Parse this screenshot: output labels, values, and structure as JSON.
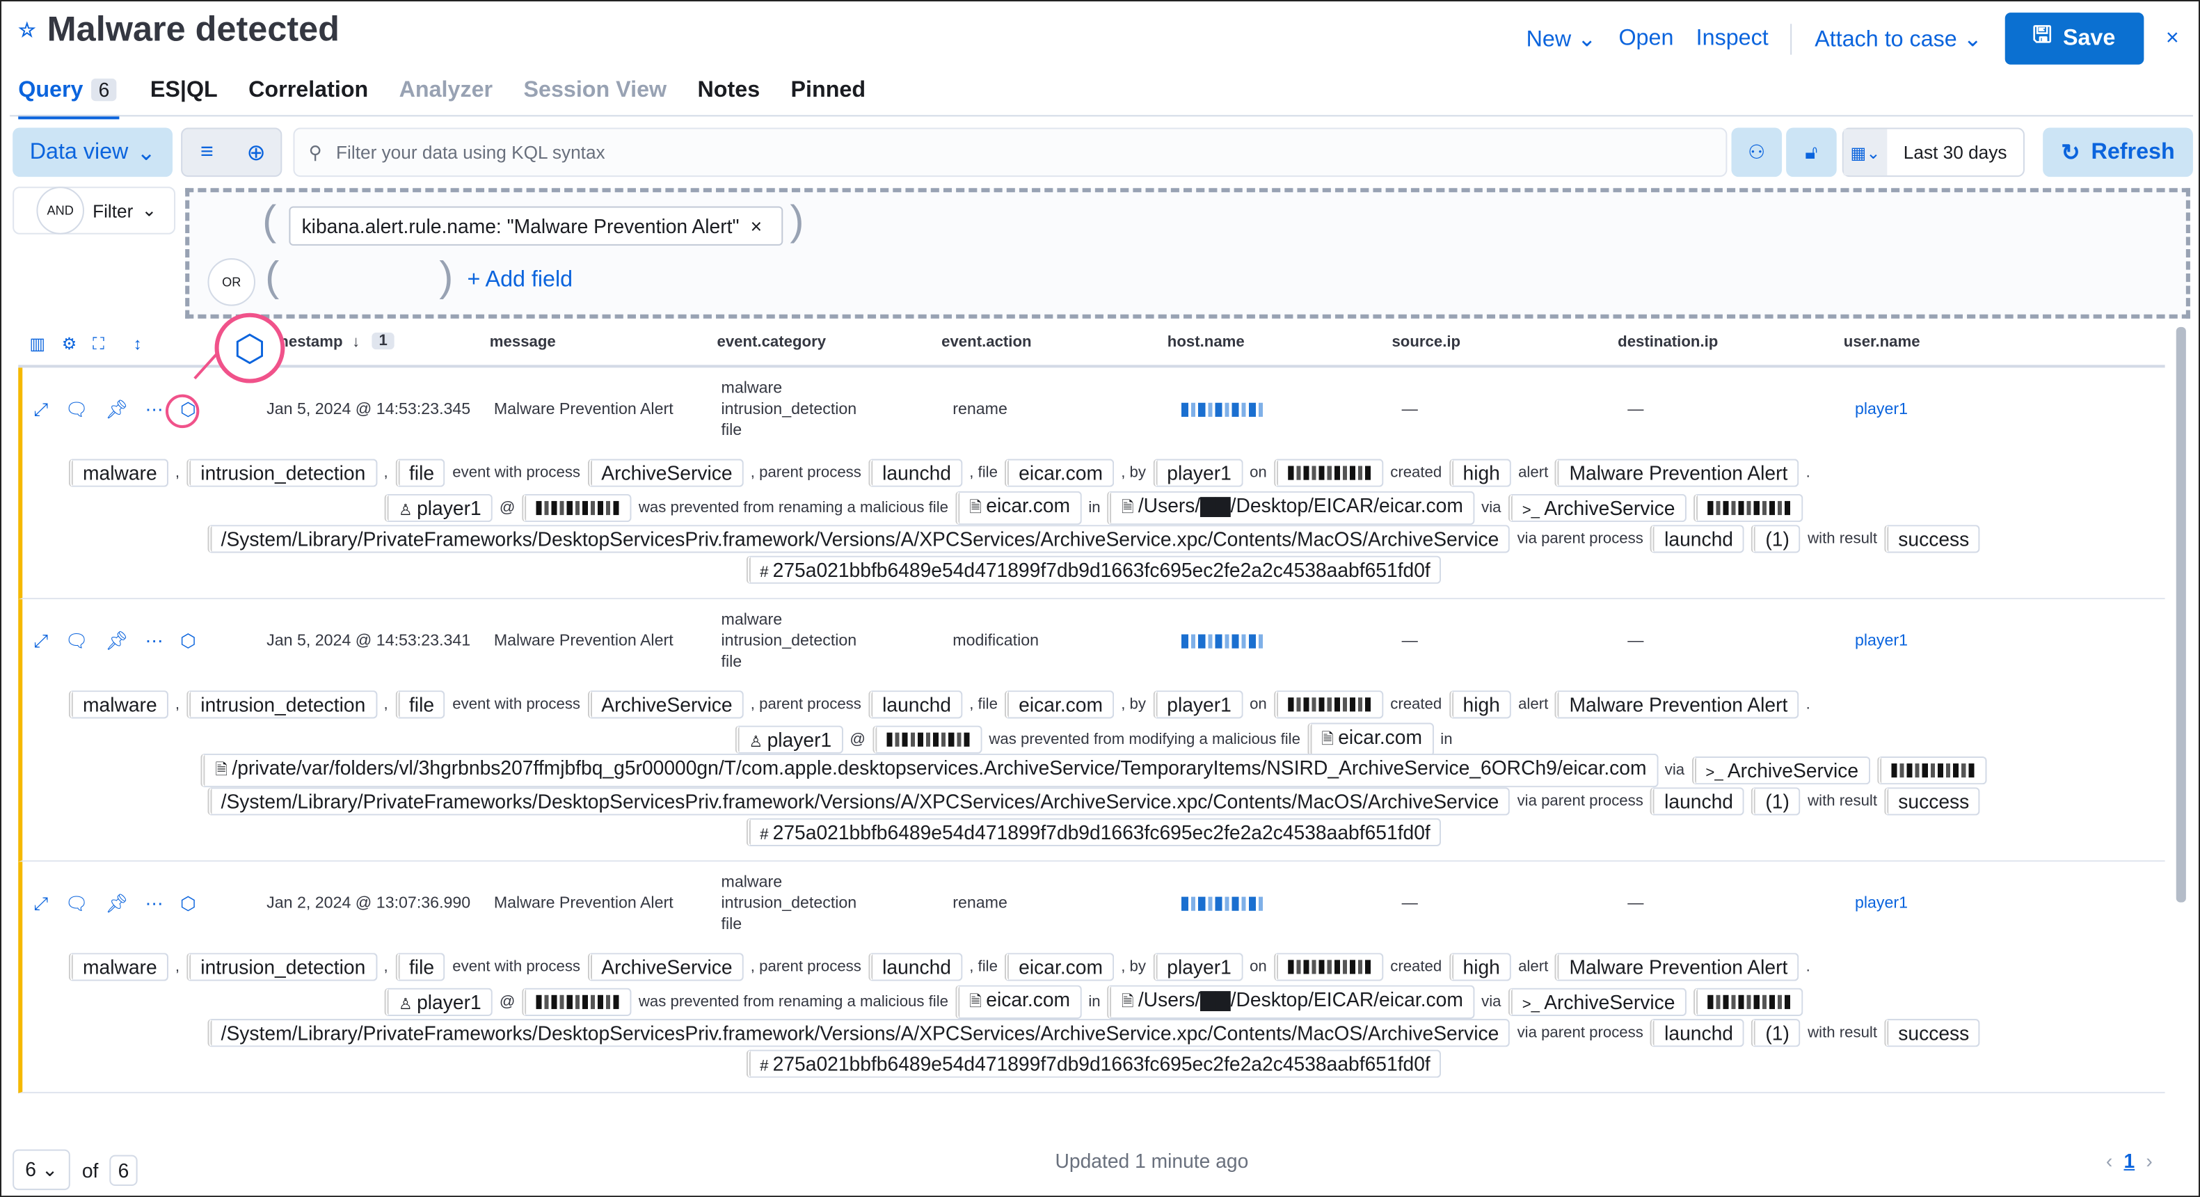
{
  "header": {
    "title": "Malware detected",
    "star_icon": "star-icon",
    "new": "New",
    "open": "Open",
    "inspect": "Inspect",
    "attach": "Attach to case",
    "save": "Save",
    "close": "×"
  },
  "tabs": [
    {
      "label": "Query",
      "count": "6",
      "state": "active"
    },
    {
      "label": "ES|QL",
      "state": "normal"
    },
    {
      "label": "Correlation",
      "state": "normal"
    },
    {
      "label": "Analyzer",
      "state": "disabled"
    },
    {
      "label": "Session View",
      "state": "disabled"
    },
    {
      "label": "Notes",
      "state": "normal"
    },
    {
      "label": "Pinned",
      "state": "normal"
    }
  ],
  "query": {
    "data_view": "Data view",
    "placeholder": "Filter your data using KQL syntax",
    "date_range": "Last 30 days",
    "refresh": "Refresh"
  },
  "filters": {
    "and": "AND",
    "filter": "Filter",
    "or": "OR",
    "pill": "kibana.alert.rule.name: \"Malware Prevention Alert\"",
    "add_field": "+ Add field"
  },
  "columns": [
    "nestamp",
    "message",
    "event.category",
    "event.action",
    "host.name",
    "source.ip",
    "destination.ip",
    "user.name"
  ],
  "sort_count": "1",
  "rows": [
    {
      "timestamp": "Jan 5, 2024 @ 14:53:23.345",
      "message": "Malware Prevention Alert",
      "categories": [
        "malware",
        "intrusion_detection",
        "file"
      ],
      "action": "rename",
      "source": "—",
      "dest": "—",
      "user": "player1",
      "lines": [
        [
          [
            "b",
            "malware"
          ],
          [
            "t",
            ","
          ],
          [
            "b",
            "intrusion_detection"
          ],
          [
            "t",
            ","
          ],
          [
            "b",
            "file"
          ],
          [
            "t",
            "event with process"
          ],
          [
            "b",
            "ArchiveService"
          ],
          [
            "t",
            ", parent process"
          ],
          [
            "b",
            "launchd"
          ],
          [
            "t",
            ", file"
          ],
          [
            "b",
            "eicar.com"
          ],
          [
            "t",
            ", by"
          ],
          [
            "b",
            "player1"
          ],
          [
            "t",
            "on"
          ],
          [
            "r",
            ""
          ],
          [
            "t",
            "created"
          ],
          [
            "b",
            "high"
          ],
          [
            "t",
            "alert"
          ],
          [
            "b",
            "Malware Prevention Alert"
          ],
          [
            "t",
            "."
          ]
        ],
        [
          [
            "u",
            "player1"
          ],
          [
            "t",
            "@"
          ],
          [
            "r",
            ""
          ],
          [
            "t",
            "was prevented from renaming a malicious file"
          ],
          [
            "f",
            "eicar.com"
          ],
          [
            "t",
            "in"
          ],
          [
            "f",
            "/Users/▇▇/Desktop/EICAR/eicar.com"
          ],
          [
            "t",
            "via"
          ],
          [
            "p",
            "ArchiveService"
          ],
          [
            "r",
            ""
          ]
        ],
        [
          [
            "b",
            "/System/Library/PrivateFrameworks/DesktopServicesPriv.framework/Versions/A/XPCServices/ArchiveService.xpc/Contents/MacOS/ArchiveService"
          ],
          [
            "t",
            "via parent process"
          ],
          [
            "b",
            "launchd"
          ],
          [
            "b",
            "(1)"
          ],
          [
            "t",
            "with result"
          ],
          [
            "b",
            "success"
          ]
        ],
        [
          [
            "h",
            "275a021bbfb6489e54d471899f7db9d1663fc695ec2fe2a2c4538aabf651fd0f"
          ]
        ]
      ]
    },
    {
      "timestamp": "Jan 5, 2024 @ 14:53:23.341",
      "message": "Malware Prevention Alert",
      "categories": [
        "malware",
        "intrusion_detection",
        "file"
      ],
      "action": "modification",
      "source": "—",
      "dest": "—",
      "user": "player1",
      "lines": [
        [
          [
            "b",
            "malware"
          ],
          [
            "t",
            ","
          ],
          [
            "b",
            "intrusion_detection"
          ],
          [
            "t",
            ","
          ],
          [
            "b",
            "file"
          ],
          [
            "t",
            "event with process"
          ],
          [
            "b",
            "ArchiveService"
          ],
          [
            "t",
            ", parent process"
          ],
          [
            "b",
            "launchd"
          ],
          [
            "t",
            ", file"
          ],
          [
            "b",
            "eicar.com"
          ],
          [
            "t",
            ", by"
          ],
          [
            "b",
            "player1"
          ],
          [
            "t",
            "on"
          ],
          [
            "r",
            ""
          ],
          [
            "t",
            "created"
          ],
          [
            "b",
            "high"
          ],
          [
            "t",
            "alert"
          ],
          [
            "b",
            "Malware Prevention Alert"
          ],
          [
            "t",
            "."
          ]
        ],
        [
          [
            "u",
            "player1"
          ],
          [
            "t",
            "@"
          ],
          [
            "r",
            ""
          ],
          [
            "t",
            "was prevented from modifying a malicious file"
          ],
          [
            "f",
            "eicar.com"
          ],
          [
            "t",
            "in"
          ]
        ],
        [
          [
            "f",
            "/private/var/folders/vl/3hgrbnbs207ffmjbfbq_g5r00000gn/T/com.apple.desktopservices.ArchiveService/TemporaryItems/NSIRD_ArchiveService_6ORCh9/eicar.com"
          ],
          [
            "t",
            "via"
          ],
          [
            "p",
            "ArchiveService"
          ],
          [
            "r",
            ""
          ]
        ],
        [
          [
            "b",
            "/System/Library/PrivateFrameworks/DesktopServicesPriv.framework/Versions/A/XPCServices/ArchiveService.xpc/Contents/MacOS/ArchiveService"
          ],
          [
            "t",
            "via parent process"
          ],
          [
            "b",
            "launchd"
          ],
          [
            "b",
            "(1)"
          ],
          [
            "t",
            "with result"
          ],
          [
            "b",
            "success"
          ]
        ],
        [
          [
            "h",
            "275a021bbfb6489e54d471899f7db9d1663fc695ec2fe2a2c4538aabf651fd0f"
          ]
        ]
      ]
    },
    {
      "timestamp": "Jan 2, 2024 @ 13:07:36.990",
      "message": "Malware Prevention Alert",
      "categories": [
        "malware",
        "intrusion_detection",
        "file"
      ],
      "action": "rename",
      "source": "—",
      "dest": "—",
      "user": "player1",
      "lines": [
        [
          [
            "b",
            "malware"
          ],
          [
            "t",
            ","
          ],
          [
            "b",
            "intrusion_detection"
          ],
          [
            "t",
            ","
          ],
          [
            "b",
            "file"
          ],
          [
            "t",
            "event with process"
          ],
          [
            "b",
            "ArchiveService"
          ],
          [
            "t",
            ", parent process"
          ],
          [
            "b",
            "launchd"
          ],
          [
            "t",
            ", file"
          ],
          [
            "b",
            "eicar.com"
          ],
          [
            "t",
            ", by"
          ],
          [
            "b",
            "player1"
          ],
          [
            "t",
            "on"
          ],
          [
            "r",
            ""
          ],
          [
            "t",
            "created"
          ],
          [
            "b",
            "high"
          ],
          [
            "t",
            "alert"
          ],
          [
            "b",
            "Malware Prevention Alert"
          ],
          [
            "t",
            "."
          ]
        ],
        [
          [
            "u",
            "player1"
          ],
          [
            "t",
            "@"
          ],
          [
            "r",
            ""
          ],
          [
            "t",
            "was prevented from renaming a malicious file"
          ],
          [
            "f",
            "eicar.com"
          ],
          [
            "t",
            "in"
          ],
          [
            "f",
            "/Users/▇▇/Desktop/EICAR/eicar.com"
          ],
          [
            "t",
            "via"
          ],
          [
            "p",
            "ArchiveService"
          ],
          [
            "r",
            ""
          ]
        ],
        [
          [
            "b",
            "/System/Library/PrivateFrameworks/DesktopServicesPriv.framework/Versions/A/XPCServices/ArchiveService.xpc/Contents/MacOS/ArchiveService"
          ],
          [
            "t",
            "via parent process"
          ],
          [
            "b",
            "launchd"
          ],
          [
            "b",
            "(1)"
          ],
          [
            "t",
            "with result"
          ],
          [
            "b",
            "success"
          ]
        ],
        [
          [
            "h",
            "275a021bbfb6489e54d471899f7db9d1663fc695ec2fe2a2c4538aabf651fd0f"
          ]
        ]
      ]
    }
  ],
  "footer": {
    "page_size": "6",
    "of": "of",
    "total": "6",
    "updated": "Updated 1 minute ago",
    "page": "1"
  },
  "colors": {
    "accent": "#0b64dd",
    "highlight": "#f0528a",
    "alert_bar": "#f5b800"
  }
}
